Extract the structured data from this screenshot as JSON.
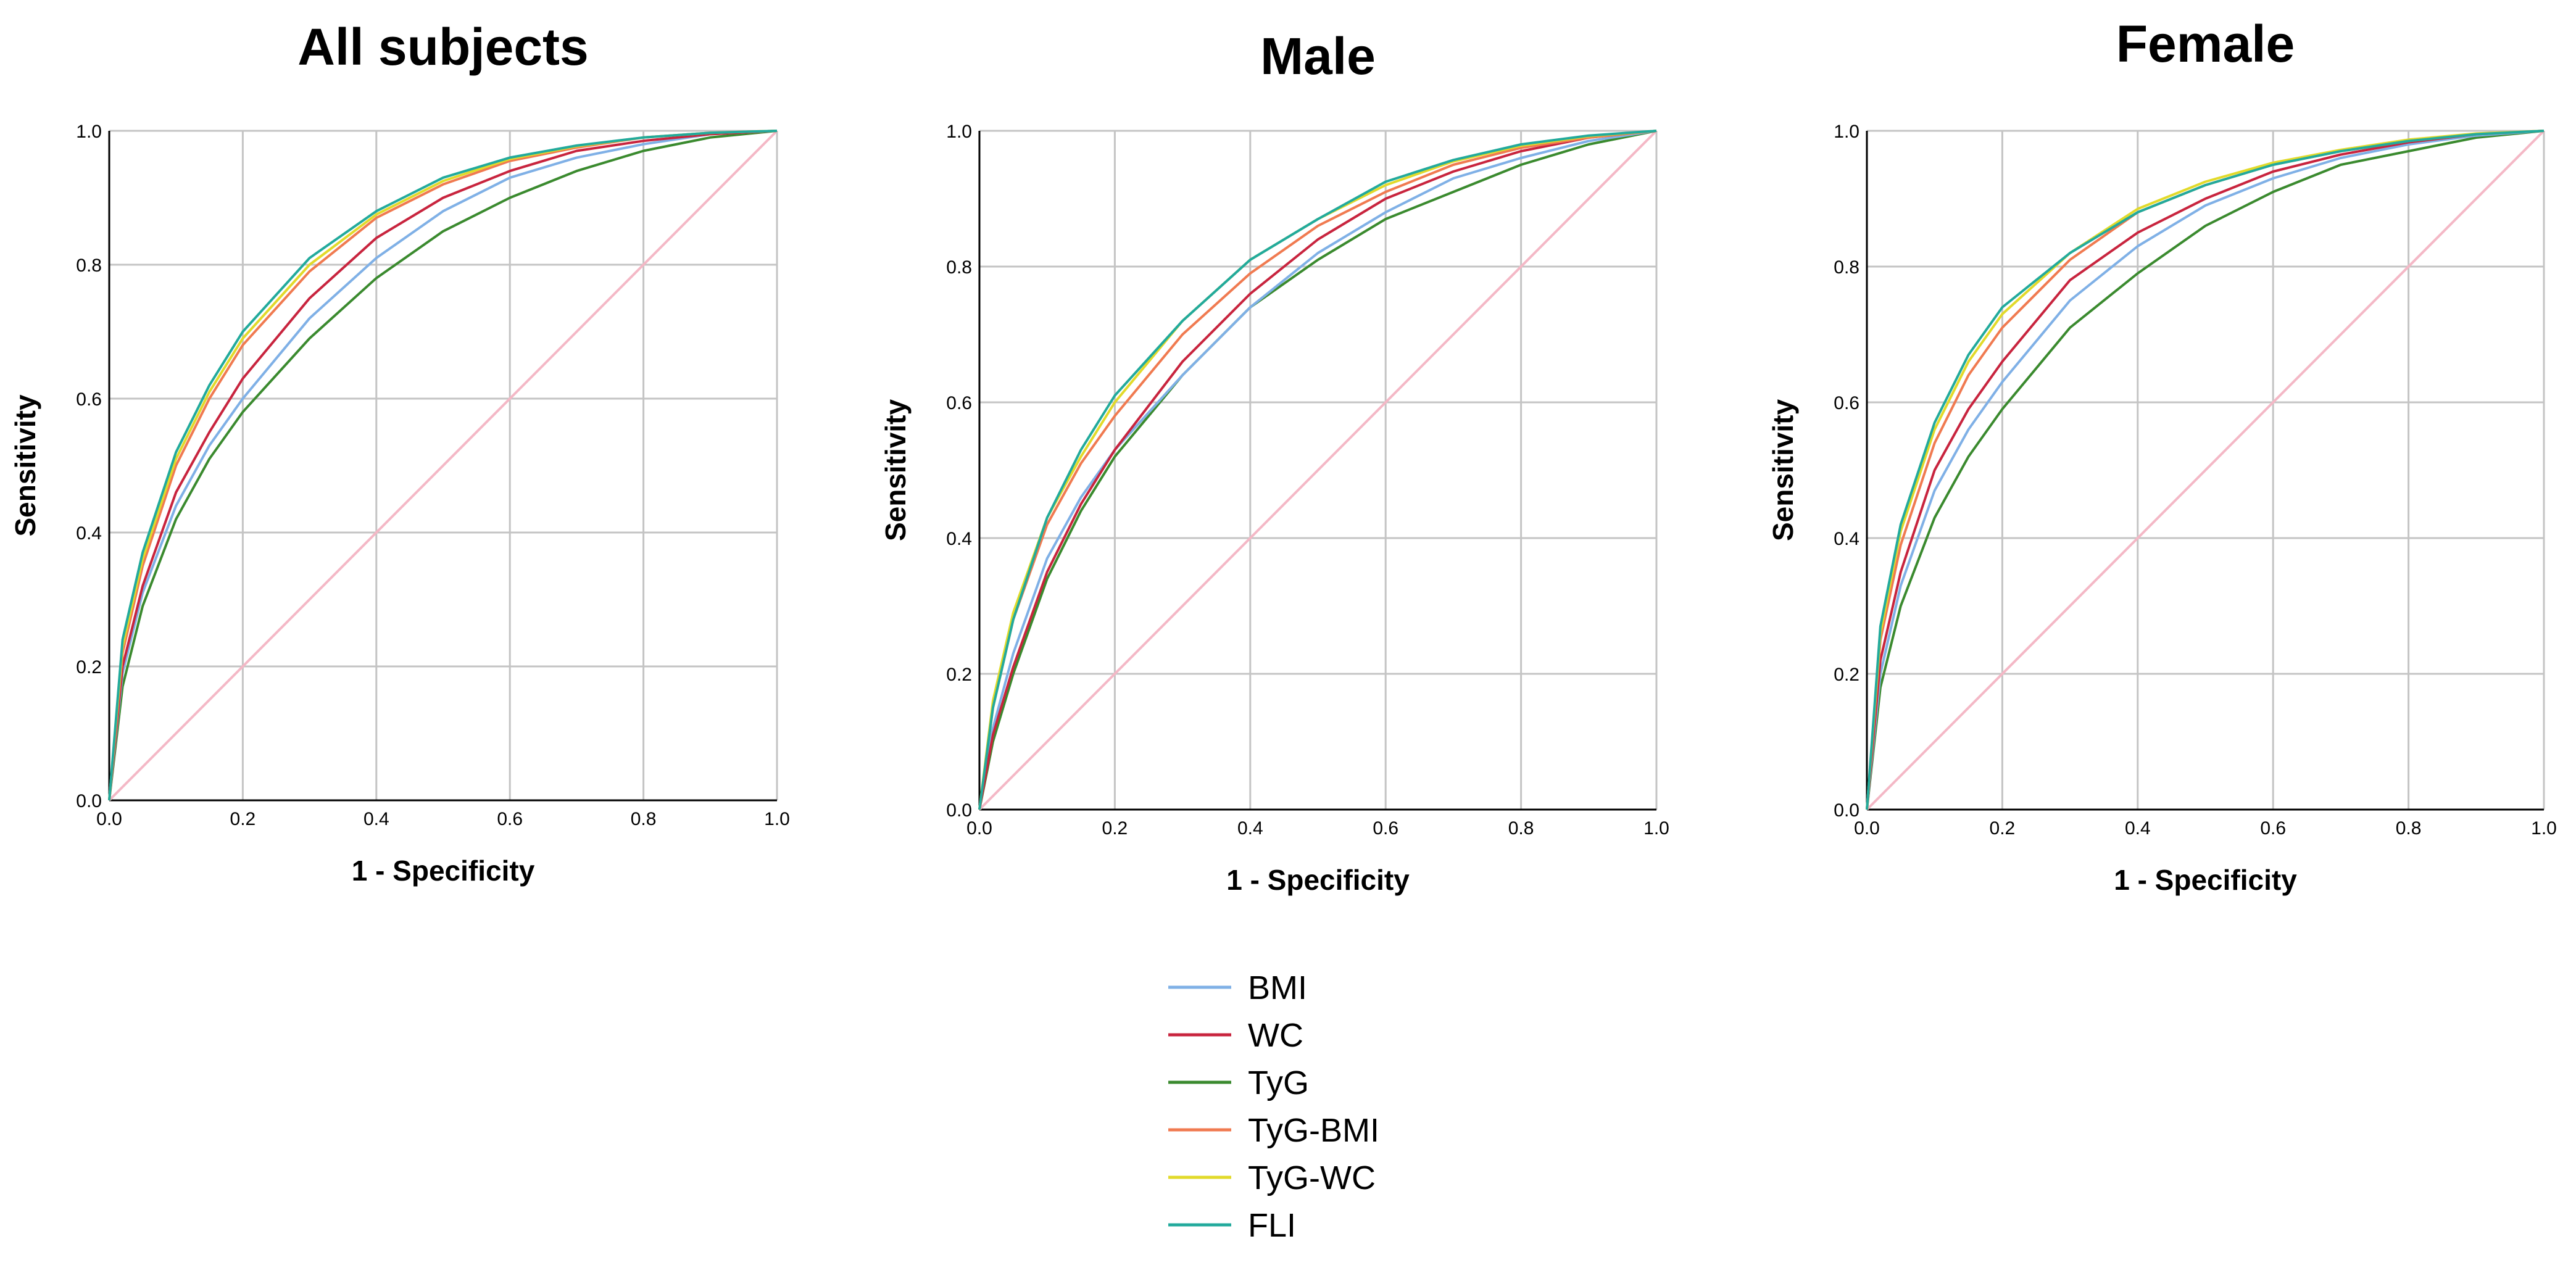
{
  "chart_data": [
    {
      "type": "line",
      "title": "All subjects",
      "xlabel": "1 - Specificity",
      "ylabel": "Sensitivity",
      "xlim": [
        0,
        1
      ],
      "ylim": [
        0,
        1
      ],
      "xticks": [
        "0.0",
        "0.2",
        "0.4",
        "0.6",
        "0.8",
        "1.0"
      ],
      "yticks": [
        "0.0",
        "0.2",
        "0.4",
        "0.6",
        "0.8",
        "1.0"
      ],
      "grid": true,
      "series": [
        {
          "name": "Reference line",
          "color": "#f4b8c6",
          "x": [
            0,
            1
          ],
          "y": [
            0,
            1
          ]
        },
        {
          "name": "TyG",
          "color": "#3a8a2e",
          "x": [
            0,
            0.02,
            0.05,
            0.1,
            0.15,
            0.2,
            0.3,
            0.4,
            0.5,
            0.6,
            0.7,
            0.8,
            0.9,
            1.0
          ],
          "y": [
            0,
            0.17,
            0.29,
            0.42,
            0.51,
            0.58,
            0.69,
            0.78,
            0.85,
            0.9,
            0.94,
            0.97,
            0.99,
            1.0
          ]
        },
        {
          "name": "BMI",
          "color": "#7fb0e6",
          "x": [
            0,
            0.02,
            0.05,
            0.1,
            0.15,
            0.2,
            0.3,
            0.4,
            0.5,
            0.6,
            0.7,
            0.8,
            0.9,
            1.0
          ],
          "y": [
            0,
            0.19,
            0.31,
            0.44,
            0.53,
            0.6,
            0.72,
            0.81,
            0.88,
            0.93,
            0.96,
            0.98,
            0.995,
            1.0
          ]
        },
        {
          "name": "WC",
          "color": "#c8243e",
          "x": [
            0,
            0.02,
            0.05,
            0.1,
            0.15,
            0.2,
            0.3,
            0.4,
            0.5,
            0.6,
            0.7,
            0.8,
            0.9,
            1.0
          ],
          "y": [
            0,
            0.2,
            0.32,
            0.46,
            0.55,
            0.63,
            0.75,
            0.84,
            0.9,
            0.94,
            0.97,
            0.985,
            0.995,
            1.0
          ]
        },
        {
          "name": "TyG-BMI",
          "color": "#f07a50",
          "x": [
            0,
            0.02,
            0.05,
            0.1,
            0.15,
            0.2,
            0.3,
            0.4,
            0.5,
            0.6,
            0.7,
            0.8,
            0.9,
            1.0
          ],
          "y": [
            0,
            0.22,
            0.35,
            0.5,
            0.6,
            0.68,
            0.79,
            0.87,
            0.92,
            0.955,
            0.975,
            0.99,
            0.997,
            1.0
          ]
        },
        {
          "name": "TyG-WC",
          "color": "#e2da2a",
          "x": [
            0,
            0.02,
            0.05,
            0.1,
            0.15,
            0.2,
            0.3,
            0.4,
            0.5,
            0.6,
            0.7,
            0.8,
            0.9,
            1.0
          ],
          "y": [
            0,
            0.23,
            0.36,
            0.51,
            0.61,
            0.69,
            0.8,
            0.875,
            0.925,
            0.958,
            0.977,
            0.99,
            0.997,
            1.0
          ]
        },
        {
          "name": "FLI",
          "color": "#22aa9c",
          "x": [
            0,
            0.02,
            0.05,
            0.1,
            0.15,
            0.2,
            0.3,
            0.4,
            0.5,
            0.6,
            0.7,
            0.8,
            0.9,
            1.0
          ],
          "y": [
            0,
            0.24,
            0.37,
            0.52,
            0.62,
            0.7,
            0.81,
            0.88,
            0.93,
            0.96,
            0.978,
            0.99,
            0.997,
            1.0
          ]
        }
      ]
    },
    {
      "type": "line",
      "title": "Male",
      "xlabel": "1 - Specificity",
      "ylabel": "Sensitivity",
      "xlim": [
        0,
        1
      ],
      "ylim": [
        0,
        1
      ],
      "xticks": [
        "0.0",
        "0.2",
        "0.4",
        "0.6",
        "0.8",
        "1.0"
      ],
      "yticks": [
        "0.0",
        "0.2",
        "0.4",
        "0.6",
        "0.8",
        "1.0"
      ],
      "grid": true,
      "series": [
        {
          "name": "Reference line",
          "color": "#f4b8c6",
          "x": [
            0,
            1
          ],
          "y": [
            0,
            1
          ]
        },
        {
          "name": "TyG",
          "color": "#3a8a2e",
          "x": [
            0,
            0.02,
            0.05,
            0.1,
            0.15,
            0.2,
            0.3,
            0.4,
            0.5,
            0.6,
            0.7,
            0.8,
            0.9,
            1.0
          ],
          "y": [
            0,
            0.1,
            0.2,
            0.34,
            0.44,
            0.52,
            0.64,
            0.74,
            0.81,
            0.87,
            0.91,
            0.95,
            0.98,
            1.0
          ]
        },
        {
          "name": "BMI",
          "color": "#7fb0e6",
          "x": [
            0,
            0.02,
            0.05,
            0.1,
            0.15,
            0.2,
            0.3,
            0.4,
            0.5,
            0.6,
            0.7,
            0.8,
            0.9,
            1.0
          ],
          "y": [
            0,
            0.12,
            0.23,
            0.37,
            0.46,
            0.53,
            0.64,
            0.74,
            0.82,
            0.88,
            0.93,
            0.96,
            0.985,
            1.0
          ]
        },
        {
          "name": "WC",
          "color": "#c8243e",
          "x": [
            0,
            0.02,
            0.05,
            0.1,
            0.15,
            0.2,
            0.3,
            0.4,
            0.5,
            0.6,
            0.7,
            0.8,
            0.9,
            1.0
          ],
          "y": [
            0,
            0.11,
            0.21,
            0.35,
            0.45,
            0.53,
            0.66,
            0.76,
            0.84,
            0.9,
            0.94,
            0.97,
            0.99,
            1.0
          ]
        },
        {
          "name": "TyG-BMI",
          "color": "#f07a50",
          "x": [
            0,
            0.02,
            0.05,
            0.1,
            0.15,
            0.2,
            0.3,
            0.4,
            0.5,
            0.6,
            0.7,
            0.8,
            0.9,
            1.0
          ],
          "y": [
            0,
            0.15,
            0.28,
            0.42,
            0.51,
            0.58,
            0.7,
            0.79,
            0.86,
            0.91,
            0.95,
            0.975,
            0.99,
            1.0
          ]
        },
        {
          "name": "TyG-WC",
          "color": "#e2da2a",
          "x": [
            0,
            0.02,
            0.05,
            0.1,
            0.15,
            0.2,
            0.3,
            0.4,
            0.5,
            0.6,
            0.7,
            0.8,
            0.9,
            1.0
          ],
          "y": [
            0,
            0.16,
            0.29,
            0.43,
            0.52,
            0.6,
            0.72,
            0.81,
            0.87,
            0.92,
            0.955,
            0.978,
            0.992,
            1.0
          ]
        },
        {
          "name": "FLI",
          "color": "#22aa9c",
          "x": [
            0,
            0.02,
            0.05,
            0.1,
            0.15,
            0.2,
            0.3,
            0.4,
            0.5,
            0.6,
            0.7,
            0.8,
            0.9,
            1.0
          ],
          "y": [
            0,
            0.15,
            0.28,
            0.43,
            0.53,
            0.61,
            0.72,
            0.81,
            0.87,
            0.925,
            0.957,
            0.98,
            0.993,
            1.0
          ]
        }
      ]
    },
    {
      "type": "line",
      "title": "Female",
      "xlabel": "1 - Specificity",
      "ylabel": "Sensitivity",
      "xlim": [
        0,
        1
      ],
      "ylim": [
        0,
        1
      ],
      "xticks": [
        "0.0",
        "0.2",
        "0.4",
        "0.6",
        "0.8",
        "1.0"
      ],
      "yticks": [
        "0.0",
        "0.2",
        "0.4",
        "0.6",
        "0.8",
        "1.0"
      ],
      "grid": true,
      "series": [
        {
          "name": "Reference line",
          "color": "#f4b8c6",
          "x": [
            0,
            1
          ],
          "y": [
            0,
            1
          ]
        },
        {
          "name": "TyG",
          "color": "#3a8a2e",
          "x": [
            0,
            0.02,
            0.05,
            0.1,
            0.15,
            0.2,
            0.3,
            0.4,
            0.5,
            0.6,
            0.7,
            0.8,
            0.9,
            1.0
          ],
          "y": [
            0,
            0.18,
            0.3,
            0.43,
            0.52,
            0.59,
            0.71,
            0.79,
            0.86,
            0.91,
            0.95,
            0.97,
            0.99,
            1.0
          ]
        },
        {
          "name": "BMI",
          "color": "#7fb0e6",
          "x": [
            0,
            0.02,
            0.05,
            0.1,
            0.15,
            0.2,
            0.3,
            0.4,
            0.5,
            0.6,
            0.7,
            0.8,
            0.9,
            1.0
          ],
          "y": [
            0,
            0.2,
            0.33,
            0.47,
            0.56,
            0.63,
            0.75,
            0.83,
            0.89,
            0.93,
            0.96,
            0.98,
            0.993,
            1.0
          ]
        },
        {
          "name": "WC",
          "color": "#c8243e",
          "x": [
            0,
            0.02,
            0.05,
            0.1,
            0.15,
            0.2,
            0.3,
            0.4,
            0.5,
            0.6,
            0.7,
            0.8,
            0.9,
            1.0
          ],
          "y": [
            0,
            0.22,
            0.35,
            0.5,
            0.59,
            0.66,
            0.78,
            0.85,
            0.9,
            0.94,
            0.965,
            0.983,
            0.995,
            1.0
          ]
        },
        {
          "name": "TyG-BMI",
          "color": "#f07a50",
          "x": [
            0,
            0.02,
            0.05,
            0.1,
            0.15,
            0.2,
            0.3,
            0.4,
            0.5,
            0.6,
            0.7,
            0.8,
            0.9,
            1.0
          ],
          "y": [
            0,
            0.25,
            0.39,
            0.54,
            0.64,
            0.71,
            0.81,
            0.88,
            0.92,
            0.95,
            0.97,
            0.985,
            0.995,
            1.0
          ]
        },
        {
          "name": "TyG-WC",
          "color": "#e2da2a",
          "x": [
            0,
            0.02,
            0.05,
            0.1,
            0.15,
            0.2,
            0.3,
            0.4,
            0.5,
            0.6,
            0.7,
            0.8,
            0.9,
            1.0
          ],
          "y": [
            0,
            0.26,
            0.41,
            0.56,
            0.66,
            0.73,
            0.82,
            0.885,
            0.925,
            0.953,
            0.972,
            0.987,
            0.996,
            1.0
          ]
        },
        {
          "name": "FLI",
          "color": "#22aa9c",
          "x": [
            0,
            0.02,
            0.05,
            0.1,
            0.15,
            0.2,
            0.3,
            0.4,
            0.5,
            0.6,
            0.7,
            0.8,
            0.9,
            1.0
          ],
          "y": [
            0,
            0.27,
            0.42,
            0.57,
            0.67,
            0.74,
            0.82,
            0.88,
            0.92,
            0.95,
            0.97,
            0.985,
            0.995,
            1.0
          ]
        }
      ]
    }
  ],
  "legend": {
    "placement": "bottom-center",
    "items": [
      {
        "label": "BMI",
        "color": "#7fb0e6"
      },
      {
        "label": "WC",
        "color": "#c8243e"
      },
      {
        "label": "TyG",
        "color": "#3a8a2e"
      },
      {
        "label": "TyG-BMI",
        "color": "#f07a50"
      },
      {
        "label": "TyG-WC",
        "color": "#e2da2a"
      },
      {
        "label": "FLI",
        "color": "#22aa9c"
      }
    ]
  }
}
